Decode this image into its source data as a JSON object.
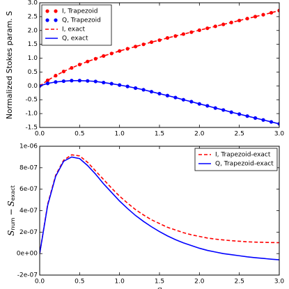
{
  "chart_data": [
    {
      "type": "line",
      "ylabel": "Normalized Stokes param. S",
      "legend": "upper left",
      "x": [
        0.0,
        0.1,
        0.2,
        0.3,
        0.4,
        0.5,
        0.6,
        0.7,
        0.8,
        0.9,
        1.0,
        1.1,
        1.2,
        1.3,
        1.4,
        1.5,
        1.6,
        1.7,
        1.8,
        1.9,
        2.0,
        2.1,
        2.2,
        2.3,
        2.4,
        2.5,
        2.6,
        2.7,
        2.8,
        2.9,
        3.0
      ],
      "series": [
        {
          "name": "I, Trapezoid",
          "color": "#ff0000",
          "style": "markers",
          "values": [
            0,
            0.2,
            0.37,
            0.52,
            0.65,
            0.77,
            0.88,
            0.98,
            1.08,
            1.17,
            1.26,
            1.34,
            1.42,
            1.5,
            1.58,
            1.65,
            1.73,
            1.8,
            1.87,
            1.94,
            2.01,
            2.08,
            2.15,
            2.22,
            2.29,
            2.36,
            2.43,
            2.5,
            2.57,
            2.64,
            2.72
          ]
        },
        {
          "name": "Q, Trapezoid",
          "color": "#0000ff",
          "style": "markers",
          "values": [
            0,
            0.09,
            0.14,
            0.17,
            0.19,
            0.19,
            0.18,
            0.16,
            0.12,
            0.08,
            0.03,
            -0.02,
            -0.08,
            -0.14,
            -0.21,
            -0.28,
            -0.35,
            -0.42,
            -0.5,
            -0.57,
            -0.65,
            -0.72,
            -0.8,
            -0.87,
            -0.95,
            -1.02,
            -1.09,
            -1.16,
            -1.23,
            -1.3,
            -1.37
          ]
        },
        {
          "name": "I, exact",
          "color": "#ff0000",
          "style": "dashed",
          "values": [
            0,
            0.2,
            0.37,
            0.52,
            0.65,
            0.77,
            0.88,
            0.98,
            1.08,
            1.17,
            1.26,
            1.34,
            1.42,
            1.5,
            1.58,
            1.65,
            1.73,
            1.8,
            1.87,
            1.94,
            2.01,
            2.08,
            2.15,
            2.22,
            2.29,
            2.36,
            2.43,
            2.5,
            2.57,
            2.64,
            2.72
          ]
        },
        {
          "name": "Q, exact",
          "color": "#0000ff",
          "style": "solid",
          "values": [
            0,
            0.09,
            0.14,
            0.17,
            0.19,
            0.19,
            0.18,
            0.16,
            0.12,
            0.08,
            0.03,
            -0.02,
            -0.08,
            -0.14,
            -0.21,
            -0.28,
            -0.35,
            -0.42,
            -0.5,
            -0.57,
            -0.65,
            -0.72,
            -0.8,
            -0.87,
            -0.95,
            -1.02,
            -1.09,
            -1.16,
            -1.23,
            -1.3,
            -1.37
          ]
        }
      ],
      "xlim": [
        0,
        3
      ],
      "xticks": [
        {
          "value": 0,
          "label": "0.0"
        },
        {
          "value": 0.5,
          "label": "0.5"
        },
        {
          "value": 1,
          "label": "1.0"
        },
        {
          "value": 1.5,
          "label": "1.5"
        },
        {
          "value": 2,
          "label": "2.0"
        },
        {
          "value": 2.5,
          "label": "2.5"
        },
        {
          "value": 3,
          "label": "3.0"
        }
      ],
      "ylim": [
        -1.5,
        3
      ],
      "yticks": [
        {
          "value": 3,
          "label": "3.0"
        },
        {
          "value": 2.5,
          "label": "2.5"
        },
        {
          "value": 2,
          "label": "2.0"
        },
        {
          "value": 1.5,
          "label": "1.5"
        },
        {
          "value": 1,
          "label": "1.0"
        },
        {
          "value": 0.5,
          "label": "0.5"
        },
        {
          "value": 0,
          "label": "0.0"
        },
        {
          "value": -0.5,
          "label": "-0.5"
        },
        {
          "value": -1,
          "label": "-1.0"
        },
        {
          "value": -1.5,
          "label": "-1.5"
        }
      ]
    },
    {
      "type": "line",
      "ylabel_parts": [
        "S",
        "num",
        "−",
        "S",
        "exact"
      ],
      "xlabel": "S",
      "legend": "upper right",
      "x": [
        0.0,
        0.1,
        0.2,
        0.3,
        0.4,
        0.5,
        0.6,
        0.7,
        0.8,
        0.9,
        1.0,
        1.1,
        1.2,
        1.3,
        1.4,
        1.5,
        1.6,
        1.7,
        1.8,
        1.9,
        2.0,
        2.1,
        2.2,
        2.3,
        2.4,
        2.5,
        2.6,
        2.7,
        2.8,
        2.9,
        3.0
      ],
      "series": [
        {
          "name": "I, Trapezoid-exact",
          "color": "#ff0000",
          "style": "dashed",
          "values": [
            0,
            4.6e-07,
            7.3e-07,
            8.7e-07,
            9.2e-07,
            9.1e-07,
            8.5e-07,
            7.7e-07,
            6.9e-07,
            6.1e-07,
            5.35e-07,
            4.7e-07,
            4.1e-07,
            3.6e-07,
            3.15e-07,
            2.8e-07,
            2.45e-07,
            2.2e-07,
            1.95e-07,
            1.75e-07,
            1.6e-07,
            1.45e-07,
            1.35e-07,
            1.27e-07,
            1.2e-07,
            1.15e-07,
            1.1e-07,
            1.07e-07,
            1.05e-07,
            1.03e-07,
            1.02e-07
          ]
        },
        {
          "name": "Q, Trapezoid-exact",
          "color": "#0000ff",
          "style": "solid",
          "values": [
            0,
            4.5e-07,
            7.2e-07,
            8.6e-07,
            9e-07,
            8.85e-07,
            8.2e-07,
            7.4e-07,
            6.5e-07,
            5.7e-07,
            4.9e-07,
            4.2e-07,
            3.55e-07,
            3e-07,
            2.5e-07,
            2.05e-07,
            1.65e-07,
            1.3e-07,
            1e-07,
            7.5e-08,
            5e-08,
            3e-08,
            1.5e-08,
            0,
            -1e-08,
            -2e-08,
            -3e-08,
            -3.8e-08,
            -4.5e-08,
            -5.2e-08,
            -5.8e-08
          ]
        }
      ],
      "xlim": [
        0,
        3
      ],
      "xticks": [
        {
          "value": 0,
          "label": "0.0"
        },
        {
          "value": 0.5,
          "label": "0.5"
        },
        {
          "value": 1,
          "label": "1.0"
        },
        {
          "value": 1.5,
          "label": "1.5"
        },
        {
          "value": 2,
          "label": "2.0"
        },
        {
          "value": 2.5,
          "label": "2.5"
        },
        {
          "value": 3,
          "label": "3.0"
        }
      ],
      "ylim": [
        -2e-07,
        1e-06
      ],
      "yticks": [
        {
          "value": 1e-06,
          "label": "1e-06"
        },
        {
          "value": 8e-07,
          "label": "8e-07"
        },
        {
          "value": 6e-07,
          "label": "6e-07"
        },
        {
          "value": 4e-07,
          "label": "4e-07"
        },
        {
          "value": 2e-07,
          "label": "2e-07"
        },
        {
          "value": 0,
          "label": "0e+00"
        },
        {
          "value": -2e-07,
          "label": "-2e-07"
        }
      ]
    }
  ]
}
